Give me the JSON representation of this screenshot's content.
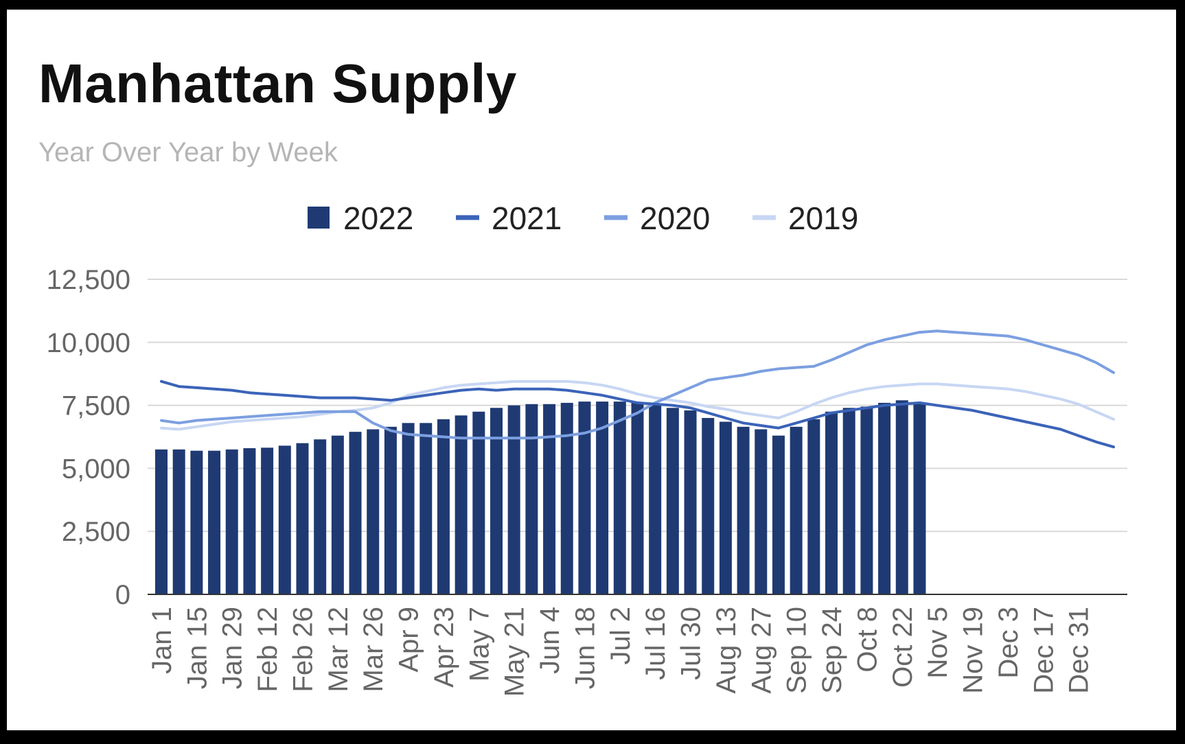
{
  "chart_data": {
    "type": "bar",
    "title": "Manhattan Supply",
    "subtitle": "Year Over Year by Week",
    "xlabel": "",
    "ylabel": "",
    "ylim": [
      0,
      12500
    ],
    "yticks": [
      "0",
      "2,500",
      "5,000",
      "7,500",
      "10,000",
      "12,500"
    ],
    "ytick_values": [
      0,
      2500,
      5000,
      7500,
      10000,
      12500
    ],
    "grid": true,
    "legend_position": "top",
    "x_tick_labels": [
      "Jan 1",
      "Jan 15",
      "Jan 29",
      "Feb 12",
      "Feb 26",
      "Mar 12",
      "Mar 26",
      "Apr 9",
      "Apr 23",
      "May 7",
      "May 21",
      "Jun 4",
      "Jun 18",
      "Jul 2",
      "Jul 16",
      "Jul 30",
      "Aug 13",
      "Aug 27",
      "Sep 10",
      "Sep 24",
      "Oct 8",
      "Oct 22",
      "Nov 5",
      "Nov 19",
      "Dec 3",
      "Dec 17",
      "Dec 31"
    ],
    "series": [
      {
        "name": "2022",
        "kind": "bar",
        "color": "#1f3a73",
        "values": [
          5750,
          5750,
          5700,
          5700,
          5750,
          5800,
          5820,
          5900,
          6000,
          6150,
          6300,
          6450,
          6550,
          6650,
          6800,
          6800,
          6950,
          7100,
          7250,
          7400,
          7500,
          7550,
          7550,
          7600,
          7650,
          7650,
          7650,
          7600,
          7550,
          7400,
          7300,
          7000,
          6850,
          6650,
          6550,
          6300,
          6650,
          6950,
          7250,
          7400,
          7450,
          7600,
          7700,
          7600
        ]
      },
      {
        "name": "2021",
        "kind": "line",
        "color": "#3b63b8",
        "values": [
          8450,
          8250,
          8200,
          8150,
          8100,
          8000,
          7950,
          7900,
          7850,
          7800,
          7800,
          7800,
          7750,
          7700,
          7800,
          7900,
          8000,
          8100,
          8150,
          8100,
          8150,
          8150,
          8150,
          8100,
          8000,
          7900,
          7750,
          7600,
          7550,
          7500,
          7400,
          7200,
          7000,
          6800,
          6700,
          6600,
          6800,
          7000,
          7200,
          7300,
          7400,
          7500,
          7550,
          7600,
          7500,
          7400,
          7300,
          7150,
          7000,
          6850,
          6700,
          6550,
          6300,
          6050,
          5850
        ]
      },
      {
        "name": "2020",
        "kind": "line",
        "color": "#7c9fe0",
        "values": [
          6900,
          6800,
          6900,
          6950,
          7000,
          7050,
          7100,
          7150,
          7200,
          7250,
          7250,
          7250,
          6800,
          6500,
          6350,
          6300,
          6250,
          6200,
          6200,
          6200,
          6200,
          6200,
          6250,
          6300,
          6400,
          6600,
          6900,
          7200,
          7600,
          7900,
          8200,
          8500,
          8600,
          8700,
          8850,
          8950,
          9000,
          9050,
          9300,
          9600,
          9900,
          10100,
          10250,
          10400,
          10450,
          10400,
          10350,
          10300,
          10250,
          10100,
          9900,
          9700,
          9500,
          9200,
          8800
        ]
      },
      {
        "name": "2019",
        "kind": "line",
        "color": "#c7d6f3",
        "values": [
          6600,
          6550,
          6650,
          6750,
          6850,
          6900,
          6950,
          7000,
          7050,
          7150,
          7250,
          7300,
          7400,
          7600,
          7900,
          8050,
          8200,
          8300,
          8350,
          8400,
          8450,
          8450,
          8450,
          8450,
          8400,
          8300,
          8150,
          7950,
          7800,
          7700,
          7600,
          7450,
          7350,
          7200,
          7100,
          7000,
          7250,
          7550,
          7800,
          8000,
          8150,
          8250,
          8300,
          8350,
          8350,
          8300,
          8250,
          8200,
          8150,
          8050,
          7900,
          7750,
          7550,
          7250,
          6950
        ]
      }
    ]
  }
}
